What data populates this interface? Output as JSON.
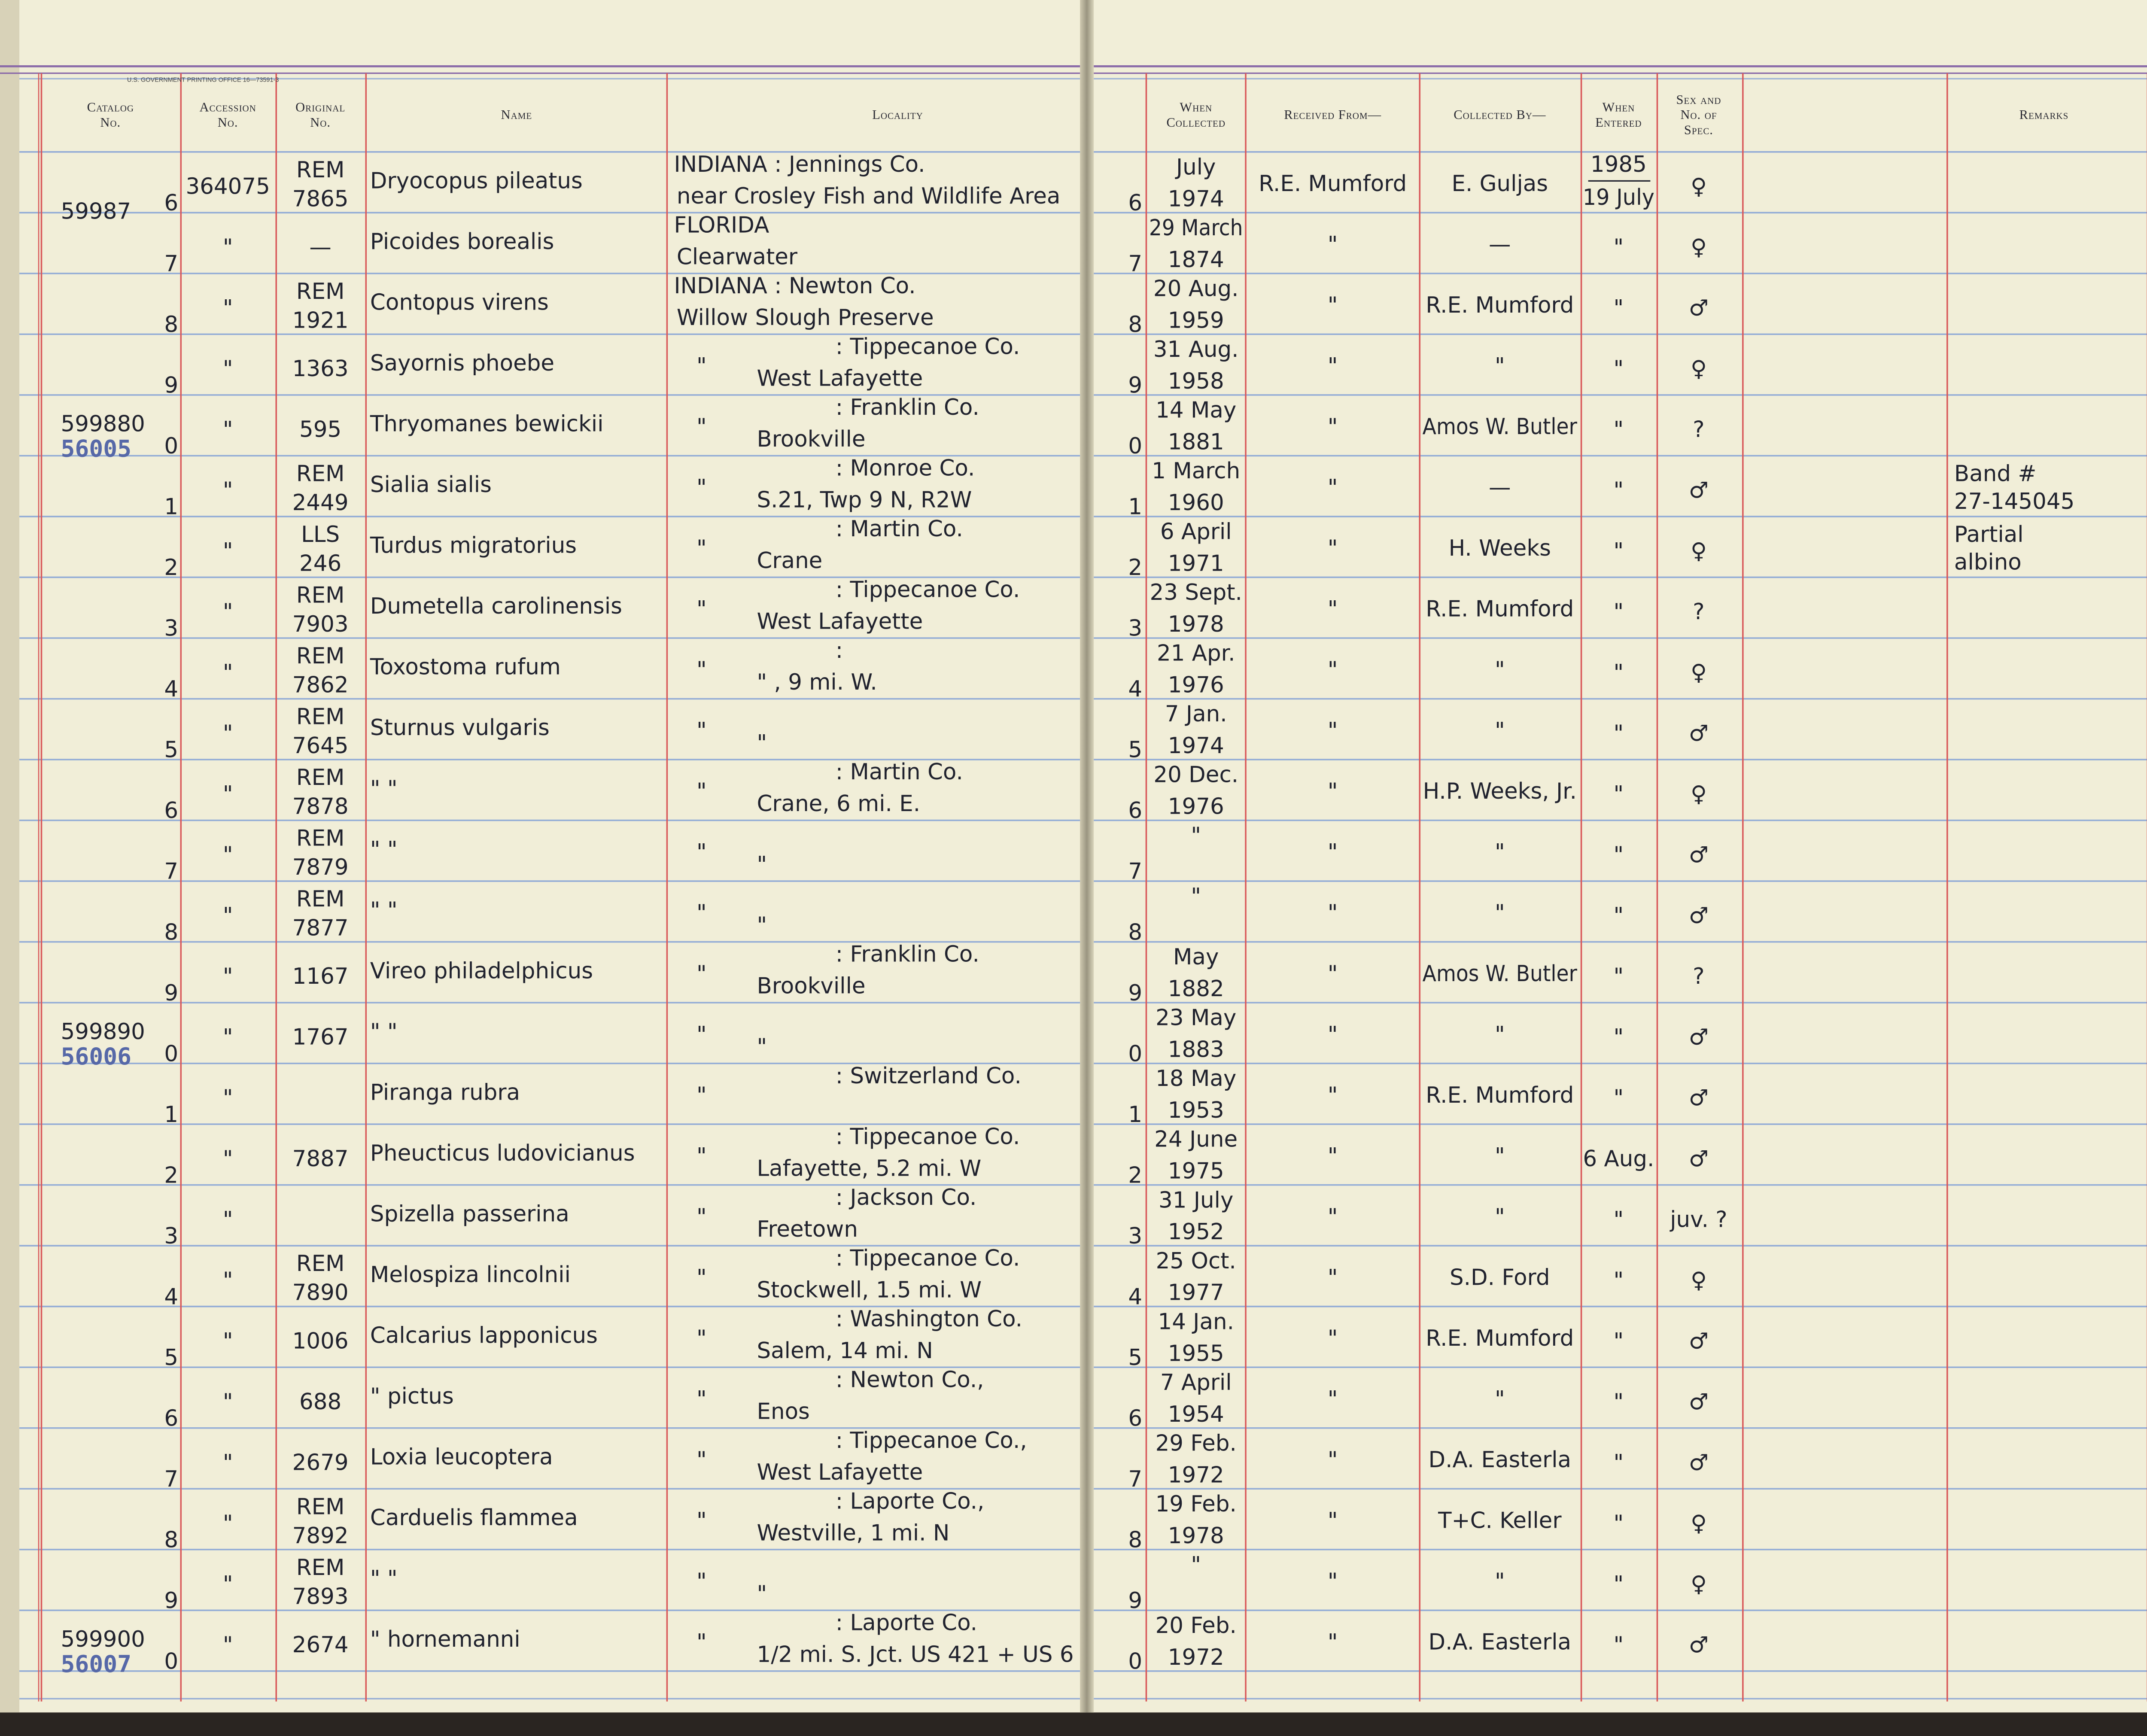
{
  "header": {
    "printer": "U.S. GOVERNMENT PRINTING OFFICE   16—73591-3",
    "columns": [
      [
        "Catalog",
        "No."
      ],
      [
        "Accession",
        "No."
      ],
      [
        "Original",
        "No."
      ],
      [
        "Name"
      ],
      [
        "Locality"
      ],
      [
        "When",
        "Collected"
      ],
      [
        "Received From—"
      ],
      [
        "Collected By—"
      ],
      [
        "When",
        "Entered"
      ],
      [
        "Sex and",
        "No. of",
        "Spec."
      ],
      [
        "Remarks"
      ]
    ]
  },
  "rows": [
    {
      "catalog": "59987",
      "digit": "6",
      "accession": "364075",
      "original": [
        "REM",
        "7865"
      ],
      "name": "Dryocopus pileatus",
      "locality_top": "INDIANA : Jennings Co.",
      "locality_bottom": "near Crosley Fish and Wildlife Area",
      "wc_digit": "6",
      "date_top": "July",
      "date_bottom": "1974",
      "received": "R.E. Mumford",
      "collected": "E. Guljas",
      "entered": [
        "1985",
        "19 July"
      ],
      "sex": "♀"
    },
    {
      "digit": "7",
      "accession": "\"",
      "original": [
        "—"
      ],
      "name": "Picoides borealis",
      "locality_top": "FLORIDA",
      "locality_bottom": "Clearwater",
      "wc_digit": "7",
      "date_top": "29 March",
      "date_bottom": "1874",
      "received": "\"",
      "collected": "—",
      "entered": [
        "\""
      ],
      "sex": "♀"
    },
    {
      "digit": "8",
      "accession": "\"",
      "original": [
        "REM",
        "1921"
      ],
      "name": "Contopus virens",
      "locality_top": "INDIANA : Newton Co.",
      "locality_bottom": "Willow Slough Preserve",
      "wc_digit": "8",
      "date_top": "20 Aug.",
      "date_bottom": "1959",
      "received": "\"",
      "collected": "R.E. Mumford",
      "entered": [
        "\""
      ],
      "sex": "♂"
    },
    {
      "digit": "9",
      "accession": "\"",
      "original": [
        "1363"
      ],
      "name": "Sayornis phoebe",
      "loc_ditto": "\"",
      "locality_top": ": Tippecanoe Co.",
      "locality_bottom": "West Lafayette",
      "wc_digit": "9",
      "date_top": "31 Aug.",
      "date_bottom": "1958",
      "received": "\"",
      "collected": "\"",
      "entered": [
        "\""
      ],
      "sex": "♀"
    },
    {
      "catalog": "599880",
      "stamp": "56005",
      "digit": "0",
      "accession": "\"",
      "original": [
        "595"
      ],
      "name": "Thryomanes bewickii",
      "loc_ditto": "\"",
      "locality_top": ": Franklin Co.",
      "locality_bottom": "Brookville",
      "wc_digit": "0",
      "date_top": "14 May",
      "date_bottom": "1881",
      "received": "\"",
      "collected": "Amos W. Butler",
      "entered": [
        "\""
      ],
      "sex": "?"
    },
    {
      "digit": "1",
      "accession": "\"",
      "original": [
        "REM",
        "2449"
      ],
      "name": "Sialia sialis",
      "loc_ditto": "\"",
      "locality_top": ": Monroe Co.",
      "locality_bottom": "S.21, Twp 9 N, R2W",
      "wc_digit": "1",
      "date_top": "1 March",
      "date_bottom": "1960",
      "received": "\"",
      "collected": "—",
      "entered": [
        "\""
      ],
      "sex": "♂",
      "remarks": [
        "Band #",
        "27-145045"
      ]
    },
    {
      "digit": "2",
      "accession": "\"",
      "original": [
        "LLS",
        "246"
      ],
      "name": "Turdus migratorius",
      "loc_ditto": "\"",
      "locality_top": ": Martin Co.",
      "locality_bottom": "Crane",
      "wc_digit": "2",
      "date_top": "6 April",
      "date_bottom": "1971",
      "received": "\"",
      "collected": "H. Weeks",
      "entered": [
        "\""
      ],
      "sex": "♀",
      "remarks": [
        "Partial",
        "albino"
      ]
    },
    {
      "digit": "3",
      "accession": "\"",
      "original": [
        "REM",
        "7903"
      ],
      "name": "Dumetella carolinensis",
      "loc_ditto": "\"",
      "locality_top": ": Tippecanoe Co.",
      "locality_bottom": "West Lafayette",
      "wc_digit": "3",
      "date_top": "23 Sept.",
      "date_bottom": "1978",
      "received": "\"",
      "collected": "R.E. Mumford",
      "entered": [
        "\""
      ],
      "sex": "?"
    },
    {
      "digit": "4",
      "accession": "\"",
      "original": [
        "REM",
        "7862"
      ],
      "name": "Toxostoma rufum",
      "loc_ditto": "\"",
      "locality_top": ":",
      "locality_bottom": "\"      , 9 mi. W.",
      "wc_digit": "4",
      "date_top": "21 Apr.",
      "date_bottom": "1976",
      "received": "\"",
      "collected": "\"",
      "entered": [
        "\""
      ],
      "sex": "♀"
    },
    {
      "digit": "5",
      "accession": "\"",
      "original": [
        "REM",
        "7645"
      ],
      "name": "Sturnus vulgaris",
      "loc_ditto": "\"",
      "locality_bottom": "\"",
      "wc_digit": "5",
      "date_top": "7 Jan.",
      "date_bottom": "1974",
      "received": "\"",
      "collected": "\"",
      "entered": [
        "\""
      ],
      "sex": "♂"
    },
    {
      "digit": "6",
      "accession": "\"",
      "original": [
        "REM",
        "7878"
      ],
      "name": "      \"          \"",
      "loc_ditto": "\"",
      "locality_top": ": Martin Co.",
      "locality_bottom": "Crane, 6 mi. E.",
      "wc_digit": "6",
      "date_top": "20 Dec.",
      "date_bottom": "1976",
      "received": "\"",
      "collected": "H.P. Weeks, Jr.",
      "entered": [
        "\""
      ],
      "sex": "♀"
    },
    {
      "digit": "7",
      "accession": "\"",
      "original": [
        "REM",
        "7879"
      ],
      "name": "      \"          \"",
      "loc_ditto": "\"",
      "locality_bottom": "\"",
      "wc_digit": "7",
      "date_top": "\"",
      "received": "\"",
      "collected": "\"",
      "entered": [
        "\""
      ],
      "sex": "♂"
    },
    {
      "digit": "8",
      "accession": "\"",
      "original": [
        "REM",
        "7877"
      ],
      "name": "      \"          \"",
      "loc_ditto": "\"",
      "locality_bottom": "\"",
      "wc_digit": "8",
      "date_top": "\"",
      "received": "\"",
      "collected": "\"",
      "entered": [
        "\""
      ],
      "sex": "♂"
    },
    {
      "digit": "9",
      "accession": "\"",
      "original": [
        "1167"
      ],
      "name": "Vireo philadelphicus",
      "loc_ditto": "\"",
      "locality_top": ": Franklin Co.",
      "locality_bottom": "Brookville",
      "wc_digit": "9",
      "date_top": "May",
      "date_bottom": "1882",
      "received": "\"",
      "collected": "Amos W. Butler",
      "entered": [
        "\""
      ],
      "sex": "?"
    },
    {
      "catalog": "599890",
      "stamp": "56006",
      "digit": "0",
      "accession": "\"",
      "original": [
        "1767"
      ],
      "name": "      \"          \"",
      "loc_ditto": "\"",
      "locality_bottom": "\"",
      "wc_digit": "0",
      "date_top": "23 May",
      "date_bottom": "1883",
      "received": "\"",
      "collected": "\"",
      "entered": [
        "\""
      ],
      "sex": "♂"
    },
    {
      "digit": "1",
      "accession": "\"",
      "name": "Piranga rubra",
      "loc_ditto": "\"",
      "locality_top": ": Switzerland Co.",
      "wc_digit": "1",
      "date_top": "18 May",
      "date_bottom": "1953",
      "received": "\"",
      "collected": "R.E. Mumford",
      "entered": [
        "\""
      ],
      "sex": "♂"
    },
    {
      "digit": "2",
      "accession": "\"",
      "original": [
        "7887"
      ],
      "name": "Pheucticus ludovicianus",
      "loc_ditto": "\"",
      "locality_top": ": Tippecanoe Co.",
      "locality_bottom": "Lafayette, 5.2 mi. W",
      "wc_digit": "2",
      "date_top": "24 June",
      "date_bottom": "1975",
      "received": "\"",
      "collected": "\"",
      "entered": [
        "6 Aug."
      ],
      "sex": "♂"
    },
    {
      "digit": "3",
      "accession": "\"",
      "name": "Spizella passerina",
      "loc_ditto": "\"",
      "locality_top": ": Jackson Co.",
      "locality_bottom": "Freetown",
      "wc_digit": "3",
      "date_top": "31 July",
      "date_bottom": "1952",
      "received": "\"",
      "collected": "\"",
      "entered": [
        "\""
      ],
      "sex": "juv. ?"
    },
    {
      "digit": "4",
      "accession": "\"",
      "original": [
        "REM",
        "7890"
      ],
      "name": "Melospiza lincolnii",
      "loc_ditto": "\"",
      "locality_top": ": Tippecanoe Co.",
      "locality_bottom": "Stockwell, 1.5 mi. W",
      "wc_digit": "4",
      "date_top": "25 Oct.",
      "date_bottom": "1977",
      "received": "\"",
      "collected": "S.D. Ford",
      "entered": [
        "\""
      ],
      "sex": "♀"
    },
    {
      "digit": "5",
      "accession": "\"",
      "original": [
        "1006"
      ],
      "name": "Calcarius lapponicus",
      "loc_ditto": "\"",
      "locality_top": ": Washington Co.",
      "locality_bottom": "Salem, 14 mi. N",
      "wc_digit": "5",
      "date_top": "14 Jan.",
      "date_bottom": "1955",
      "received": "\"",
      "collected": "R.E. Mumford",
      "entered": [
        "\""
      ],
      "sex": "♂"
    },
    {
      "digit": "6",
      "accession": "\"",
      "original": [
        "688"
      ],
      "name": "     \"     pictus",
      "loc_ditto": "\"",
      "locality_top": ": Newton Co.,",
      "locality_bottom": "Enos",
      "wc_digit": "6",
      "date_top": "7 April",
      "date_bottom": "1954",
      "received": "\"",
      "collected": "\"",
      "entered": [
        "\""
      ],
      "sex": "♂"
    },
    {
      "digit": "7",
      "accession": "\"",
      "original": [
        "2679"
      ],
      "name": "Loxia leucoptera",
      "loc_ditto": "\"",
      "locality_top": ": Tippecanoe Co.,",
      "locality_bottom": "West Lafayette",
      "wc_digit": "7",
      "date_top": "29 Feb.",
      "date_bottom": "1972",
      "received": "\"",
      "collected": "D.A. Easterla",
      "entered": [
        "\""
      ],
      "sex": "♂"
    },
    {
      "digit": "8",
      "accession": "\"",
      "original": [
        "REM",
        "7892"
      ],
      "name": "Carduelis flammea",
      "loc_ditto": "\"",
      "locality_top": ": Laporte Co.,",
      "locality_bottom": "Westville, 1 mi. N",
      "wc_digit": "8",
      "date_top": "19 Feb.",
      "date_bottom": "1978",
      "received": "\"",
      "collected": "T+C. Keller",
      "entered": [
        "\""
      ],
      "sex": "♀"
    },
    {
      "digit": "9",
      "accession": "\"",
      "original": [
        "REM",
        "7893"
      ],
      "name": "      \"          \"",
      "loc_ditto": "\"",
      "locality_bottom": "\"",
      "wc_digit": "9",
      "date_top": "\"",
      "received": "\"",
      "collected": "\"",
      "entered": [
        "\""
      ],
      "sex": "♀"
    },
    {
      "catalog": "599900",
      "stamp": "56007",
      "digit": "0",
      "accession": "\"",
      "original": [
        "2674"
      ],
      "name": "  \"    hornemanni",
      "loc_ditto": "\"",
      "locality_top": ": Laporte Co.",
      "locality_bottom": "1/2 mi. S. Jct. US 421 + US 6",
      "wc_digit": "0",
      "date_top": "20 Feb.",
      "date_bottom": "1972",
      "received": "\"",
      "collected": "D.A. Easterla",
      "entered": [
        "\""
      ],
      "sex": "♂"
    }
  ]
}
